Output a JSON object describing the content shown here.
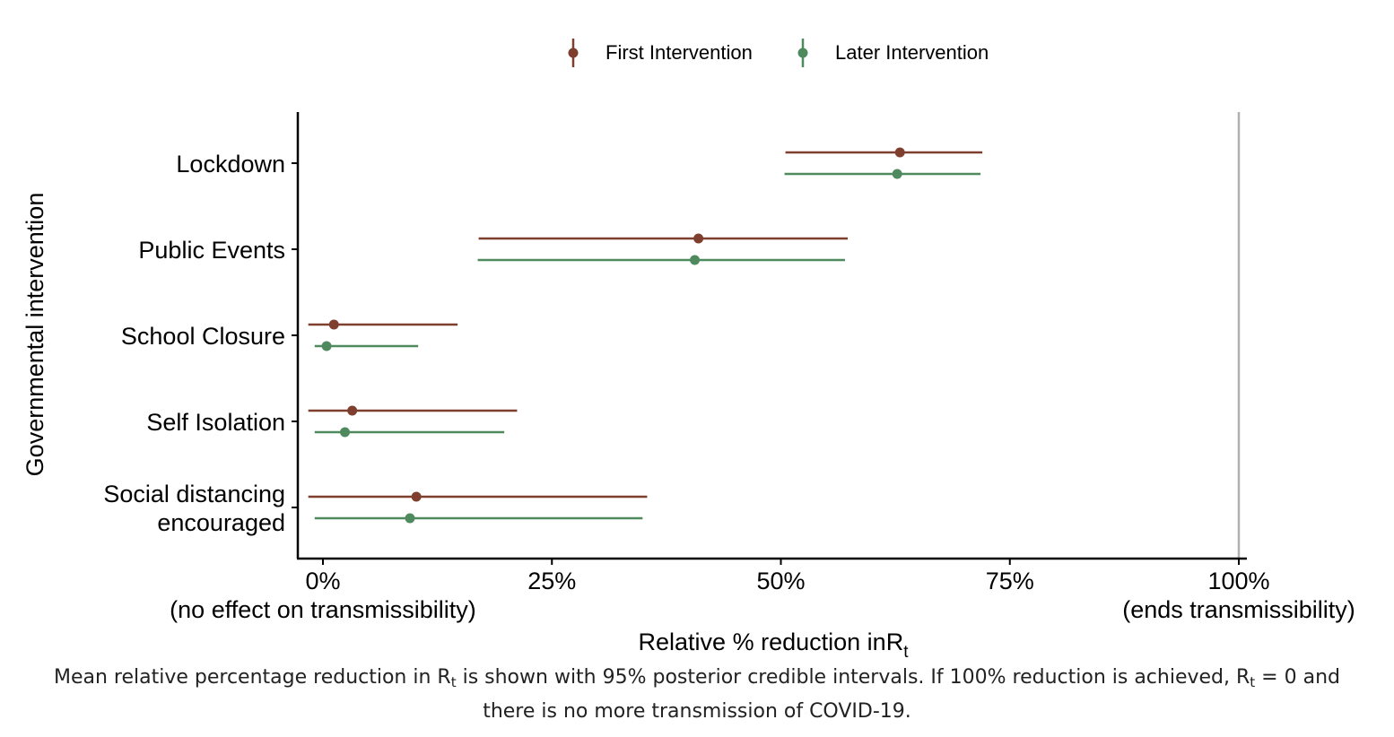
{
  "chart_data": {
    "type": "dot-interval",
    "xlabel": "Relative % reduction in",
    "xlabel_symbol": "R",
    "xlabel_symbol_sub": "t",
    "ylabel": "Governmental intervention",
    "xlim": [
      -2.5,
      102
    ],
    "xticks": [
      {
        "value": 0,
        "label": "0%",
        "sublabel": "(no effect on transmissibility)"
      },
      {
        "value": 25,
        "label": "25%",
        "sublabel": ""
      },
      {
        "value": 50,
        "label": "50%",
        "sublabel": ""
      },
      {
        "value": 75,
        "label": "75%",
        "sublabel": ""
      },
      {
        "value": 100,
        "label": "100%",
        "sublabel": "(ends transmissibility)"
      }
    ],
    "reference_line": 100,
    "categories": [
      {
        "lines": [
          "Lockdown"
        ]
      },
      {
        "lines": [
          "Public Events"
        ]
      },
      {
        "lines": [
          "School Closure"
        ]
      },
      {
        "lines": [
          "Self Isolation"
        ]
      },
      {
        "lines": [
          "Social distancing",
          "encouraged"
        ]
      }
    ],
    "series": [
      {
        "name": "First Intervention",
        "color": "#7f3f2f",
        "mean": [
          63.0,
          41.0,
          1.2,
          3.2,
          10.2
        ],
        "lower": [
          50.5,
          17.0,
          -1.6,
          -1.6,
          -1.6
        ],
        "upper": [
          72.0,
          57.3,
          14.7,
          21.2,
          35.4
        ]
      },
      {
        "name": "Later Intervention",
        "color": "#4e8a5e",
        "mean": [
          62.7,
          40.6,
          0.4,
          2.4,
          9.5
        ],
        "lower": [
          50.4,
          16.9,
          -0.9,
          -0.9,
          -0.9
        ],
        "upper": [
          71.8,
          57.0,
          10.4,
          19.8,
          34.9
        ]
      }
    ],
    "legend_position": "top-center"
  },
  "caption": {
    "line1_a": "Mean relative percentage reduction in R",
    "line1_sub1": "t",
    "line1_b": " is shown with 95% posterior credible intervals. If 100% reduction is achieved, R",
    "line1_sub2": "t",
    "line1_c": " = 0 and",
    "line2": "there is no more transmission of COVID-19."
  }
}
